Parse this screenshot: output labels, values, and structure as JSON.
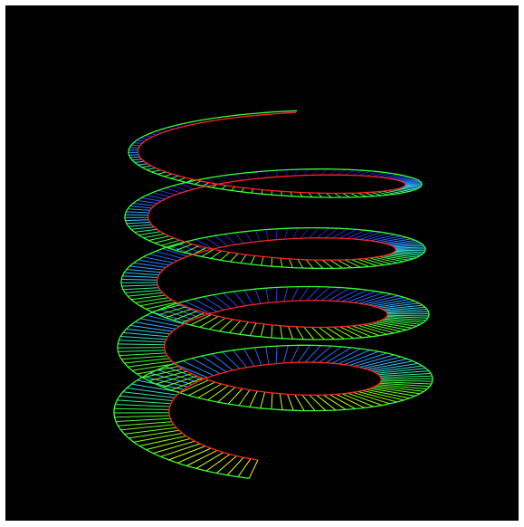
{
  "scene": {
    "background_color": "#000000",
    "frame_color": "#ffffff",
    "object": "helical-ribbon",
    "turns": 4.5,
    "outer_edge_color": "#33ff33",
    "inner_edge_color": "#ff2222",
    "rung_palette": [
      "#ffff00",
      "#88ff00",
      "#33ff44",
      "#33ccff",
      "#2255ff",
      "#2200aa"
    ]
  }
}
